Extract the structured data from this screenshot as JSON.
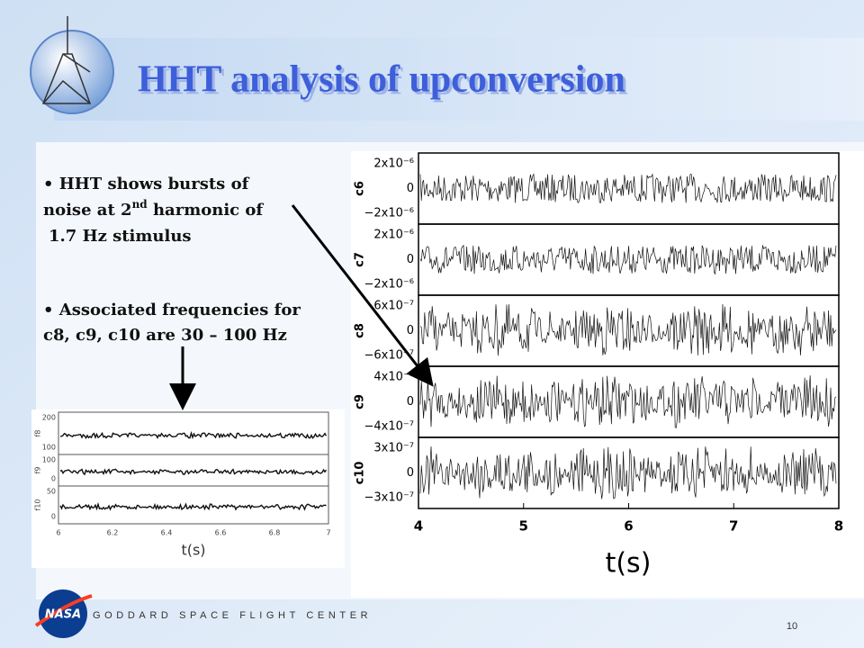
{
  "header": {
    "title": "HHT analysis of upconversion"
  },
  "bullets": [
    {
      "line1": "HHT shows bursts of",
      "line2a": "noise at 2",
      "sup": "nd",
      "line2b": " harmonic of",
      "line3": "1.7 Hz stimulus"
    },
    {
      "line1": "Associated frequencies for",
      "line2": "c8, c9, c10 are 30 – 100 Hz"
    }
  ],
  "right_plot": {
    "panels": [
      {
        "label": "c6",
        "ticks": [
          "2x10⁻⁶",
          "0",
          "−2x10⁻⁶"
        ]
      },
      {
        "label": "c7",
        "ticks": [
          "2x10⁻⁶",
          "0",
          "−2x10⁻⁶"
        ]
      },
      {
        "label": "c8",
        "ticks": [
          "6x10⁻⁷",
          "0",
          "−6x10⁻⁷"
        ]
      },
      {
        "label": "c9",
        "ticks": [
          "4x10⁻⁷",
          "0",
          "−4x10⁻⁷"
        ]
      },
      {
        "label": "c10",
        "ticks": [
          "3x10⁻⁷",
          "0",
          "−3x10⁻⁷"
        ]
      }
    ],
    "xticks": [
      "4",
      "5",
      "6",
      "7",
      "8"
    ],
    "xlabel": "t(s)"
  },
  "left_plot": {
    "panels": [
      {
        "label": "f8",
        "ticks": [
          "200",
          "100"
        ]
      },
      {
        "label": "f9",
        "ticks": [
          "100",
          "0"
        ]
      },
      {
        "label": "f10",
        "ticks": [
          "50",
          "0"
        ]
      }
    ],
    "xticks": [
      "6",
      "6.2",
      "6.4",
      "6.6",
      "6.8",
      "7"
    ],
    "xlabel": "t(s)"
  },
  "footer": {
    "center": "GODDARD SPACE FLIGHT CENTER",
    "logo": "NASA",
    "page": "10"
  }
}
